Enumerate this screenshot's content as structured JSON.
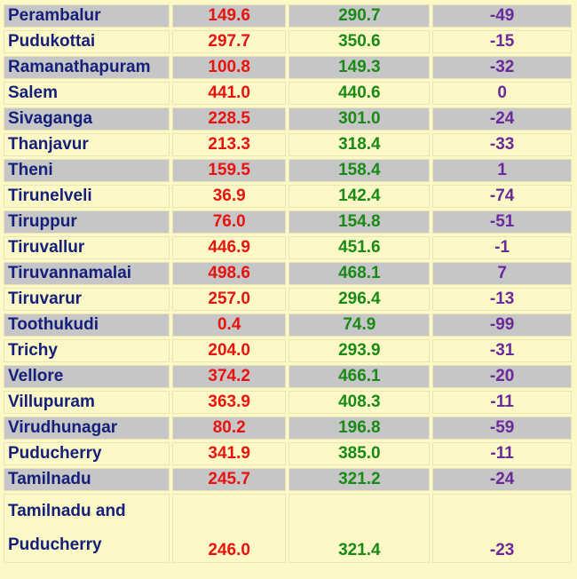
{
  "table": {
    "rows": [
      {
        "district": "Perambalur",
        "actual": "149.6",
        "normal": "290.7",
        "departure": "-49"
      },
      {
        "district": "Pudukottai",
        "actual": "297.7",
        "normal": "350.6",
        "departure": "-15"
      },
      {
        "district": "Ramanathapuram",
        "actual": "100.8",
        "normal": "149.3",
        "departure": "-32"
      },
      {
        "district": "Salem",
        "actual": "441.0",
        "normal": "440.6",
        "departure": "0"
      },
      {
        "district": "Sivaganga",
        "actual": "228.5",
        "normal": "301.0",
        "departure": "-24"
      },
      {
        "district": "Thanjavur",
        "actual": "213.3",
        "normal": "318.4",
        "departure": "-33"
      },
      {
        "district": "Theni",
        "actual": "159.5",
        "normal": "158.4",
        "departure": "1"
      },
      {
        "district": "Tirunelveli",
        "actual": "36.9",
        "normal": "142.4",
        "departure": "-74"
      },
      {
        "district": "Tiruppur",
        "actual": "76.0",
        "normal": "154.8",
        "departure": "-51"
      },
      {
        "district": "Tiruvallur",
        "actual": "446.9",
        "normal": "451.6",
        "departure": "-1"
      },
      {
        "district": "Tiruvannamalai",
        "actual": "498.6",
        "normal": "468.1",
        "departure": "7"
      },
      {
        "district": "Tiruvarur",
        "actual": "257.0",
        "normal": "296.4",
        "departure": "-13"
      },
      {
        "district": "Toothukudi",
        "actual": "0.4",
        "normal": "74.9",
        "departure": "-99"
      },
      {
        "district": "Trichy",
        "actual": "204.0",
        "normal": "293.9",
        "departure": "-31"
      },
      {
        "district": "Vellore",
        "actual": "374.2",
        "normal": "466.1",
        "departure": "-20"
      },
      {
        "district": "Villupuram",
        "actual": "363.9",
        "normal": "408.3",
        "departure": "-11"
      },
      {
        "district": "Virudhunagar",
        "actual": "80.2",
        "normal": "196.8",
        "departure": "-59"
      },
      {
        "district": "Puducherry",
        "actual": "341.9",
        "normal": "385.0",
        "departure": "-11"
      },
      {
        "district": "Tamilnadu",
        "actual": "245.7",
        "normal": "321.2",
        "departure": "-24"
      },
      {
        "district": "Tamilnadu and Puducherry",
        "actual": "246.0",
        "normal": "321.4",
        "departure": "-23"
      }
    ]
  },
  "colors": {
    "district_text": "#14207a",
    "actual_text": "#e8130f",
    "normal_text": "#1a8a17",
    "departure_text": "#6a2a9a",
    "row_gray": "#c6c6c6",
    "row_cream": "#fdf9c6"
  }
}
